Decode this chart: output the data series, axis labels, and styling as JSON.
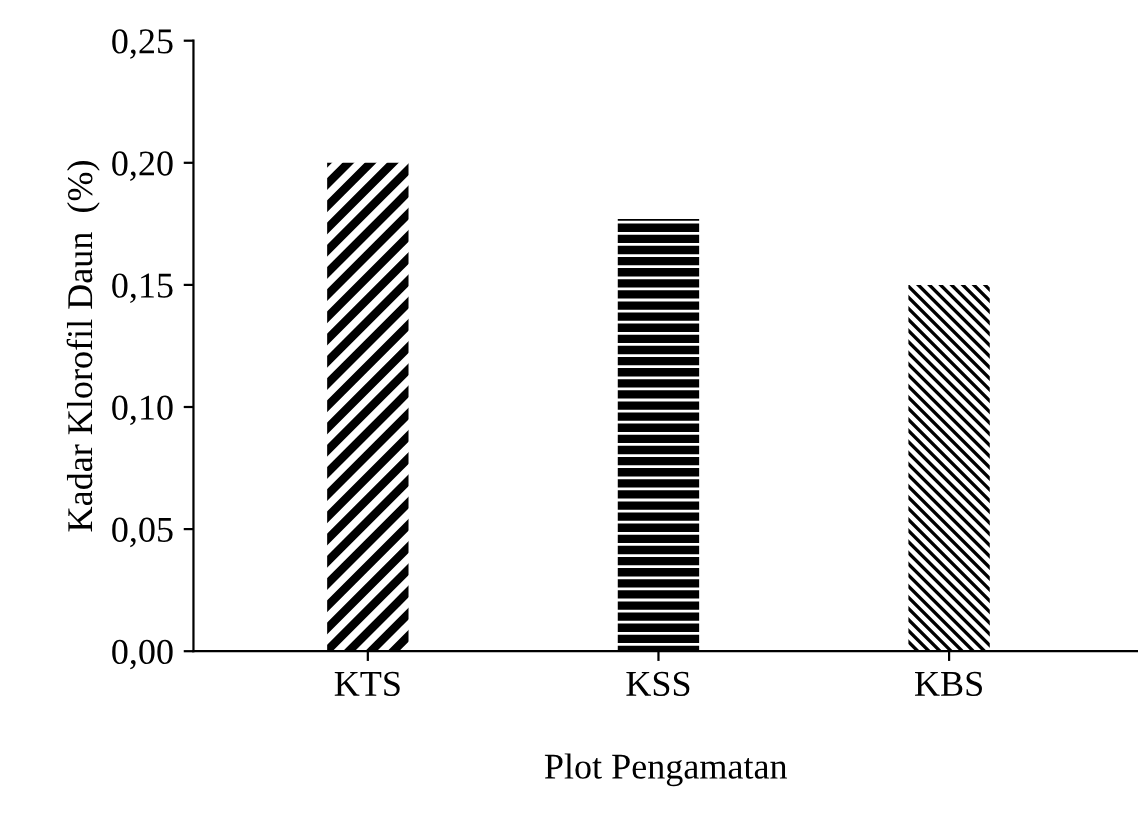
{
  "chart_data": {
    "type": "bar",
    "xlabel": "Plot Pengamatan",
    "ylabel": "Kadar Klorofil Daun  (%)",
    "categories": [
      "KTS",
      "KSS",
      "KBS"
    ],
    "values": [
      0.2,
      0.177,
      0.15
    ],
    "color": "#000000",
    "ylim": [
      0,
      0.25
    ],
    "yticks": [
      {
        "value": 0,
        "label": "0,00"
      },
      {
        "value": 0.05,
        "label": "0,05"
      },
      {
        "value": 0.1,
        "label": "0,10"
      },
      {
        "value": 0.15,
        "label": "0,15"
      },
      {
        "value": 0.2,
        "label": "0,20"
      },
      {
        "value": 0.25,
        "label": "0,25"
      }
    ],
    "grid": false,
    "legend": false
  }
}
